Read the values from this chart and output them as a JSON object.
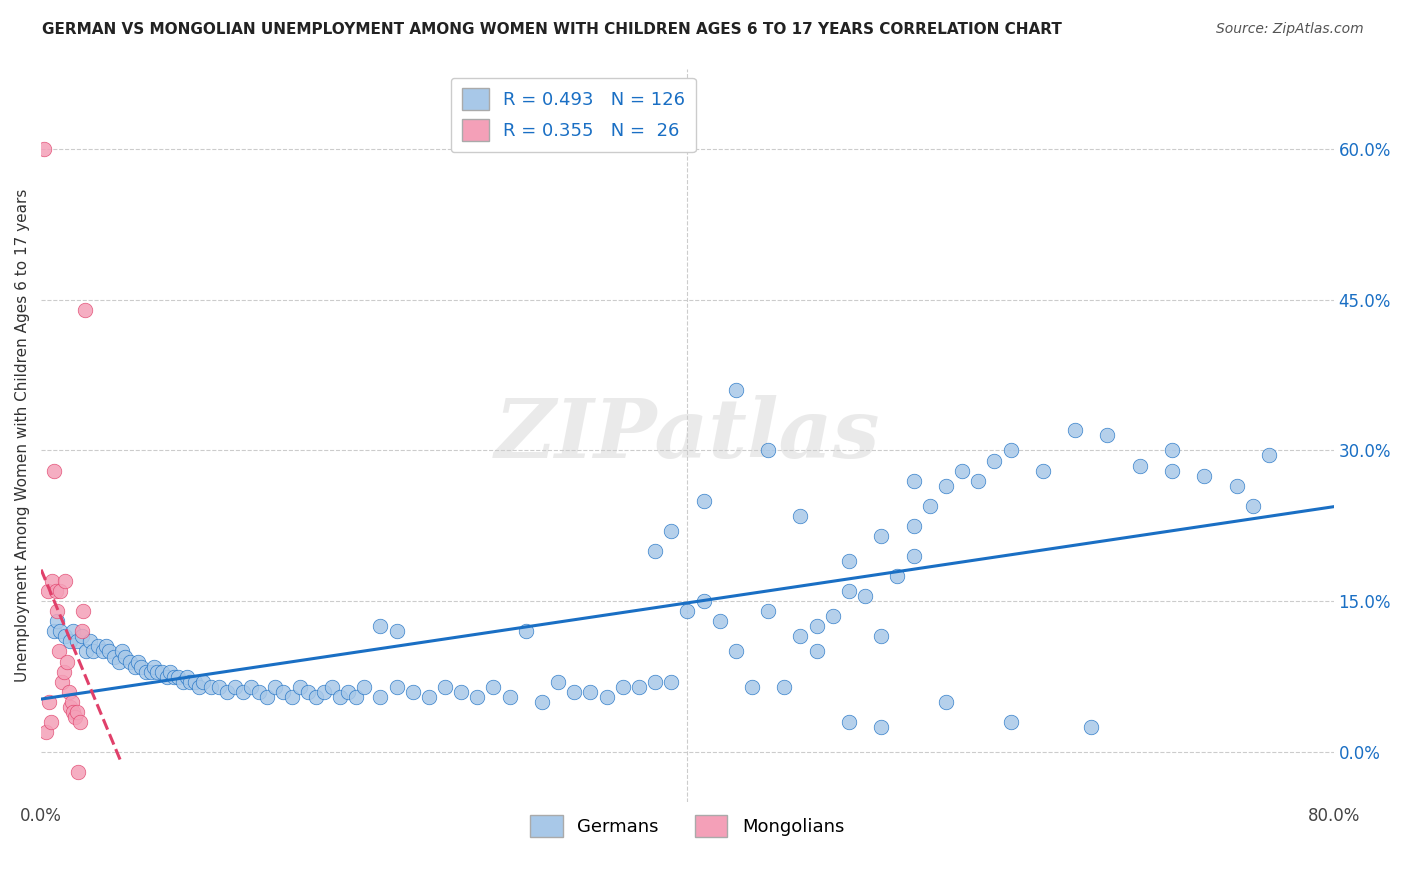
{
  "title": "GERMAN VS MONGOLIAN UNEMPLOYMENT AMONG WOMEN WITH CHILDREN AGES 6 TO 17 YEARS CORRELATION CHART",
  "source": "Source: ZipAtlas.com",
  "ylabel": "Unemployment Among Women with Children Ages 6 to 17 years",
  "xlim": [
    0.0,
    0.8
  ],
  "ylim": [
    -0.05,
    0.68
  ],
  "ytick_vals": [
    0.0,
    0.15,
    0.3,
    0.45,
    0.6
  ],
  "ytick_labels": [
    "0.0%",
    "15.0%",
    "30.0%",
    "45.0%",
    "60.0%"
  ],
  "xtick_vals": [
    0.0,
    0.8
  ],
  "xtick_labels": [
    "0.0%",
    "80.0%"
  ],
  "german_color": "#a8c8e8",
  "mongolian_color": "#f4a0b8",
  "german_line_color": "#1a6fc4",
  "mongolian_line_color": "#e0406a",
  "watermark": "ZIPatlas",
  "german_x": [
    0.008,
    0.01,
    0.012,
    0.015,
    0.018,
    0.02,
    0.022,
    0.025,
    0.028,
    0.03,
    0.032,
    0.035,
    0.038,
    0.04,
    0.042,
    0.045,
    0.048,
    0.05,
    0.052,
    0.055,
    0.058,
    0.06,
    0.062,
    0.065,
    0.068,
    0.07,
    0.072,
    0.075,
    0.078,
    0.08,
    0.082,
    0.085,
    0.088,
    0.09,
    0.092,
    0.095,
    0.098,
    0.1,
    0.105,
    0.11,
    0.115,
    0.12,
    0.125,
    0.13,
    0.135,
    0.14,
    0.145,
    0.15,
    0.155,
    0.16,
    0.165,
    0.17,
    0.175,
    0.18,
    0.185,
    0.19,
    0.195,
    0.2,
    0.21,
    0.22,
    0.23,
    0.24,
    0.25,
    0.26,
    0.27,
    0.28,
    0.3,
    0.32,
    0.34,
    0.36,
    0.38,
    0.4,
    0.41,
    0.42,
    0.43,
    0.44,
    0.45,
    0.46,
    0.47,
    0.48,
    0.49,
    0.5,
    0.51,
    0.52,
    0.53,
    0.54,
    0.55,
    0.56,
    0.57,
    0.58,
    0.59,
    0.6,
    0.62,
    0.64,
    0.66,
    0.68,
    0.7,
    0.72,
    0.74,
    0.76,
    0.21,
    0.22,
    0.38,
    0.39,
    0.41,
    0.43,
    0.45,
    0.47,
    0.5,
    0.52,
    0.54,
    0.56,
    0.6,
    0.65,
    0.7,
    0.75,
    0.29,
    0.31,
    0.33,
    0.35,
    0.37,
    0.39,
    0.48,
    0.5,
    0.52,
    0.54
  ],
  "german_y": [
    0.12,
    0.13,
    0.12,
    0.115,
    0.11,
    0.12,
    0.11,
    0.115,
    0.1,
    0.11,
    0.1,
    0.105,
    0.1,
    0.105,
    0.1,
    0.095,
    0.09,
    0.1,
    0.095,
    0.09,
    0.085,
    0.09,
    0.085,
    0.08,
    0.08,
    0.085,
    0.08,
    0.08,
    0.075,
    0.08,
    0.075,
    0.075,
    0.07,
    0.075,
    0.07,
    0.07,
    0.065,
    0.07,
    0.065,
    0.065,
    0.06,
    0.065,
    0.06,
    0.065,
    0.06,
    0.055,
    0.065,
    0.06,
    0.055,
    0.065,
    0.06,
    0.055,
    0.06,
    0.065,
    0.055,
    0.06,
    0.055,
    0.065,
    0.055,
    0.065,
    0.06,
    0.055,
    0.065,
    0.06,
    0.055,
    0.065,
    0.12,
    0.07,
    0.06,
    0.065,
    0.07,
    0.14,
    0.15,
    0.13,
    0.1,
    0.065,
    0.14,
    0.065,
    0.115,
    0.125,
    0.135,
    0.16,
    0.155,
    0.115,
    0.175,
    0.27,
    0.245,
    0.265,
    0.28,
    0.27,
    0.29,
    0.3,
    0.28,
    0.32,
    0.315,
    0.285,
    0.3,
    0.275,
    0.265,
    0.295,
    0.125,
    0.12,
    0.2,
    0.22,
    0.25,
    0.36,
    0.3,
    0.235,
    0.19,
    0.215,
    0.225,
    0.05,
    0.03,
    0.025,
    0.28,
    0.245,
    0.055,
    0.05,
    0.06,
    0.055,
    0.065,
    0.07,
    0.1,
    0.03,
    0.025,
    0.195
  ],
  "mongolian_x": [
    0.002,
    0.003,
    0.004,
    0.005,
    0.006,
    0.007,
    0.008,
    0.009,
    0.01,
    0.011,
    0.012,
    0.013,
    0.014,
    0.015,
    0.016,
    0.017,
    0.018,
    0.019,
    0.02,
    0.021,
    0.022,
    0.023,
    0.024,
    0.025,
    0.026,
    0.027
  ],
  "mongolian_y": [
    0.6,
    0.02,
    0.16,
    0.05,
    0.03,
    0.17,
    0.28,
    0.16,
    0.14,
    0.1,
    0.16,
    0.07,
    0.08,
    0.17,
    0.09,
    0.06,
    0.045,
    0.05,
    0.04,
    0.035,
    0.04,
    -0.02,
    0.03,
    0.12,
    0.14,
    0.44
  ]
}
